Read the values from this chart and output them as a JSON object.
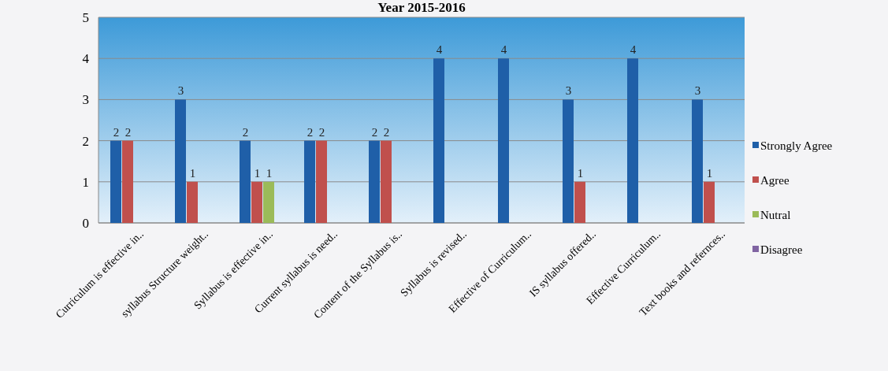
{
  "chart_data": {
    "type": "bar",
    "title": "Year 2015-2016",
    "categories": [
      "Curriculum is effective in..",
      "syllabus Structure weight..",
      "Syllabus is effective in..",
      "Current syllabus is need..",
      "Content of the Syllabus is..",
      "Syllabus is revised..",
      "Effective of Curriculum..",
      "IS syllabus offered..",
      "Effective Curriculum..",
      "Text books and refernces.."
    ],
    "series": [
      {
        "name": "Strongly Agree",
        "color": "#1f5fa8",
        "values": [
          2,
          3,
          2,
          2,
          2,
          4,
          4,
          3,
          4,
          3
        ]
      },
      {
        "name": "Agree",
        "color": "#c0504d",
        "values": [
          2,
          1,
          1,
          2,
          2,
          null,
          null,
          1,
          null,
          1
        ]
      },
      {
        "name": "Nutral",
        "color": "#9bbb59",
        "values": [
          null,
          null,
          1,
          null,
          null,
          null,
          null,
          null,
          null,
          null
        ]
      },
      {
        "name": "Disagree",
        "color": "#8064a2",
        "values": [
          null,
          null,
          null,
          null,
          null,
          null,
          null,
          null,
          null,
          null
        ]
      }
    ],
    "ylim": [
      0,
      5
    ],
    "yticks": [
      0,
      1,
      2,
      3,
      4,
      5
    ],
    "grid": "y",
    "legend": "right",
    "data_labels": true
  }
}
